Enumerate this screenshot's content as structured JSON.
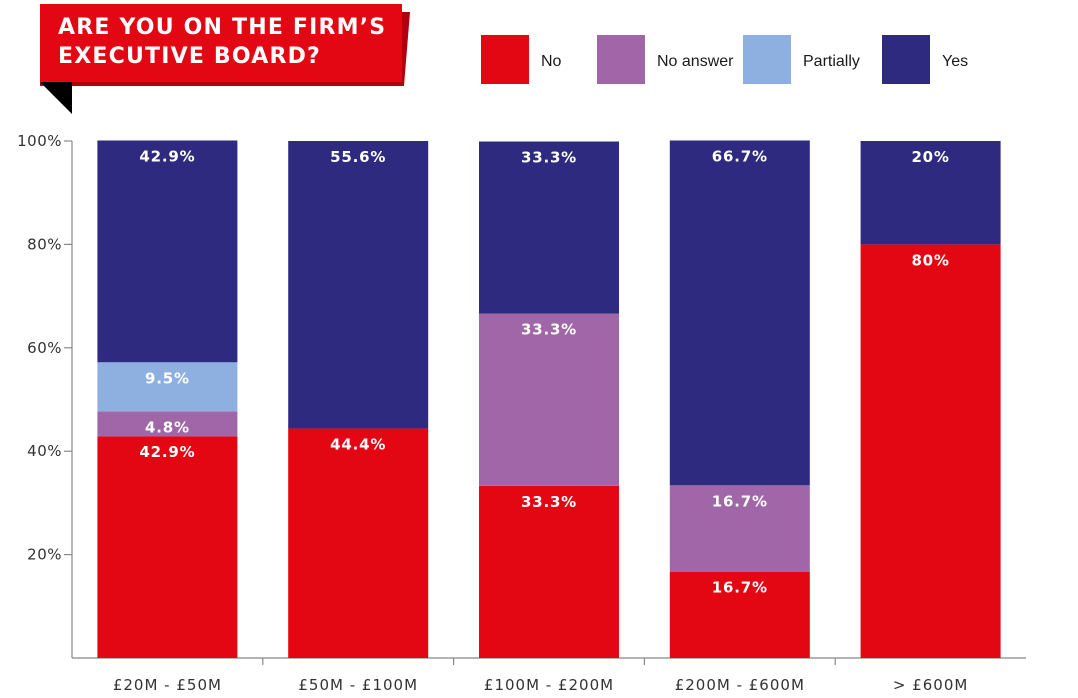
{
  "chart_data": {
    "type": "bar",
    "stacked": true,
    "title": "ARE YOU ON THE FIRM'S EXECUTIVE BOARD?",
    "title_lines": [
      "ARE YOU ON THE FIRM’S",
      "EXECUTIVE BOARD?"
    ],
    "categories": [
      "£20M - £50M",
      "£50M - £100M",
      "£100M - £200M",
      "£200M - £600M",
      "> £600M"
    ],
    "series": [
      {
        "name": "No",
        "color": "#e30613",
        "values": [
          42.9,
          44.4,
          33.3,
          16.7,
          80
        ],
        "labels": [
          "42.9%",
          "44.4%",
          "33.3%",
          "16.7%",
          "80%"
        ]
      },
      {
        "name": "No answer",
        "color": "#a066a8",
        "values": [
          4.8,
          0,
          33.3,
          16.7,
          0
        ],
        "labels": [
          "4.8%",
          "",
          "33.3%",
          "16.7%",
          ""
        ]
      },
      {
        "name": "Partially",
        "color": "#8db0e0",
        "values": [
          9.5,
          0,
          0,
          0,
          0
        ],
        "labels": [
          "9.5%",
          "",
          "",
          "",
          ""
        ]
      },
      {
        "name": "Yes",
        "color": "#2e2a80",
        "values": [
          42.9,
          55.6,
          33.3,
          66.7,
          20
        ],
        "labels": [
          "42.9%",
          "55.6%",
          "33.3%",
          "66.7%",
          "20%"
        ]
      }
    ],
    "y_ticks": [
      "20%",
      "40%",
      "60%",
      "80%",
      "100%"
    ],
    "y_tick_values": [
      20,
      40,
      60,
      80,
      100
    ],
    "ylim": [
      0,
      100
    ],
    "grid": false,
    "legend_position": "top-right"
  }
}
